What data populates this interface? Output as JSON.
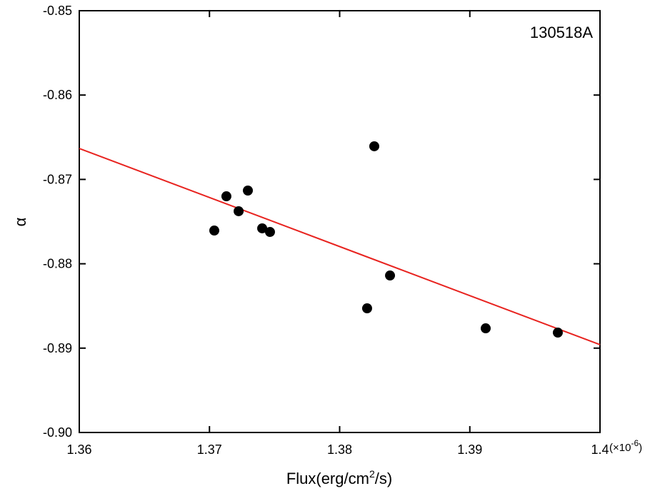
{
  "chart_data": {
    "type": "scatter",
    "annotation": "130518A",
    "xlabel_parts": [
      "Flux(erg/cm",
      "2",
      "/s)"
    ],
    "x_multiplier_parts": [
      "(×10",
      "-6",
      ")"
    ],
    "ylabel": "α",
    "x": [
      1.37037,
      1.3713,
      1.37224,
      1.37295,
      1.37405,
      1.37465,
      1.38266,
      1.38211,
      1.38387,
      1.39122,
      1.39676
    ],
    "values": [
      -0.87606,
      -0.872,
      -0.87377,
      -0.87132,
      -0.8758,
      -0.87623,
      -0.86607,
      -0.88528,
      -0.88139,
      -0.88765,
      -0.88816
    ],
    "color": "#000000",
    "fit_line": {
      "x": [
        1.36,
        1.4
      ],
      "y": [
        -0.86633,
        -0.88959
      ],
      "color": "#e8231f"
    },
    "xlim": [
      1.36,
      1.4
    ],
    "xticks": [
      1.36,
      1.37,
      1.38,
      1.39,
      1.4
    ],
    "ylim": [
      -0.9,
      -0.85
    ],
    "yticks": [
      {
        "value": -0.9,
        "label": "-0.90"
      },
      -0.89,
      -0.88,
      -0.87,
      -0.86,
      -0.85
    ]
  }
}
